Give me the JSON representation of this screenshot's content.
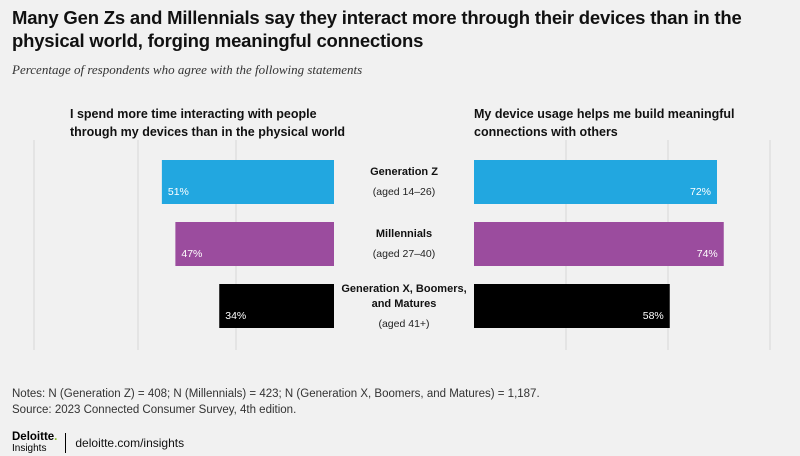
{
  "title": "Many Gen Zs and Millennials say they interact more through their devices than in the physical world, forging meaningful connections",
  "subtitle": "Percentage of respondents who agree with the following statements",
  "chart_data": {
    "type": "bar",
    "orientation": "horizontal",
    "layout": "diverging butterfly",
    "panels": [
      "I spend more time interacting with people through my devices than in the physical world",
      "My device usage helps me build meaningful connections with others"
    ],
    "categories": [
      {
        "name": "Generation Z",
        "age": "(aged 14–26)",
        "color": "#22a7e0"
      },
      {
        "name": "Millennials",
        "age": "(aged 27–40)",
        "color": "#9b4c9e"
      },
      {
        "name": "Generation X, Boomers, and Matures",
        "age": "(aged 41+)",
        "color": "#000000"
      }
    ],
    "series": [
      {
        "values": [
          51,
          47,
          34
        ],
        "labels": [
          "51%",
          "47%",
          "34%"
        ]
      },
      {
        "values": [
          72,
          74,
          58
        ],
        "labels": [
          "72%",
          "74%",
          "58%"
        ]
      }
    ],
    "unit": "%",
    "xlim": [
      0,
      80
    ],
    "grid": true
  },
  "notes": "Notes: N (Generation Z) = 408; N (Millennials) = 423; N (Generation X, Boomers, and Matures) = 1,187.",
  "source": "Source: 2023 Connected Consumer Survey, 4th edition.",
  "footer": {
    "logo_main": "Deloitte",
    "logo_dot": ".",
    "logo_sub": "Insights",
    "site": "deloitte.com/insights"
  }
}
